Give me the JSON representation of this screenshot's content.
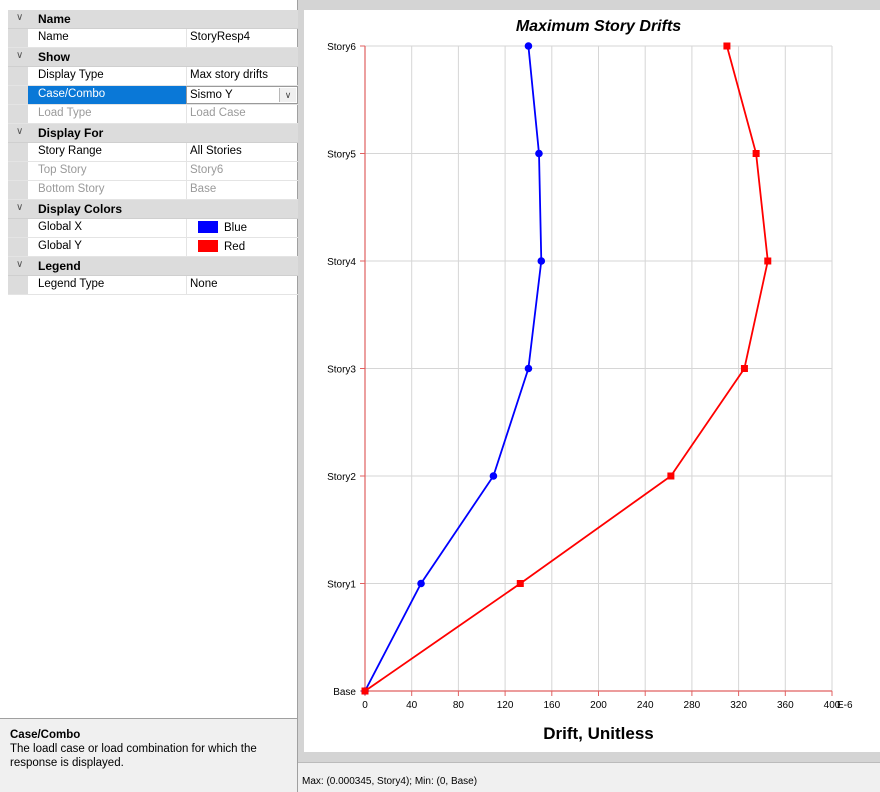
{
  "panel": {
    "categories": [
      {
        "label": "Name",
        "rows": [
          {
            "name": "Name",
            "value": "StoryResp4",
            "state": "normal"
          }
        ]
      },
      {
        "label": "Show",
        "rows": [
          {
            "name": "Display Type",
            "value": "Max story drifts",
            "state": "normal"
          },
          {
            "name": "Case/Combo",
            "value": "Sismo Y",
            "state": "selected"
          },
          {
            "name": "Load Type",
            "value": "Load Case",
            "state": "disabled"
          }
        ]
      },
      {
        "label": "Display For",
        "rows": [
          {
            "name": "Story Range",
            "value": "All Stories",
            "state": "normal"
          },
          {
            "name": "Top Story",
            "value": "Story6",
            "state": "disabled"
          },
          {
            "name": "Bottom Story",
            "value": "Base",
            "state": "disabled"
          }
        ]
      },
      {
        "label": "Display Colors",
        "rows": [
          {
            "name": "Global X",
            "value": "Blue",
            "state": "normal",
            "swatch": "#0000ff"
          },
          {
            "name": "Global Y",
            "value": "Red",
            "state": "normal",
            "swatch": "#ff0000"
          }
        ]
      },
      {
        "label": "Legend",
        "rows": [
          {
            "name": "Legend Type",
            "value": "None",
            "state": "normal"
          }
        ]
      }
    ],
    "description": {
      "title": "Case/Combo",
      "text": "The loadl case or load combination for which the response is displayed."
    }
  },
  "status_text": "Max: (0.000345, Story4);   Min: (0, Base)",
  "chart_data": {
    "type": "line",
    "title": "Maximum Story Drifts",
    "xlabel": "Drift, Unitless",
    "x_unit_label": "E-6",
    "categories": [
      "Base",
      "Story1",
      "Story2",
      "Story3",
      "Story4",
      "Story5",
      "Story6"
    ],
    "x_ticks": [
      0,
      40,
      80,
      120,
      160,
      200,
      240,
      280,
      320,
      360,
      400
    ],
    "xlim": [
      0,
      400
    ],
    "grid": true,
    "series": [
      {
        "color": "#0000ff",
        "marker": "circle",
        "values": [
          0,
          48,
          110,
          140,
          151,
          149,
          140
        ]
      },
      {
        "color": "#ff0000",
        "marker": "square",
        "values": [
          0,
          133,
          262,
          325,
          345,
          335,
          310
        ]
      }
    ]
  }
}
